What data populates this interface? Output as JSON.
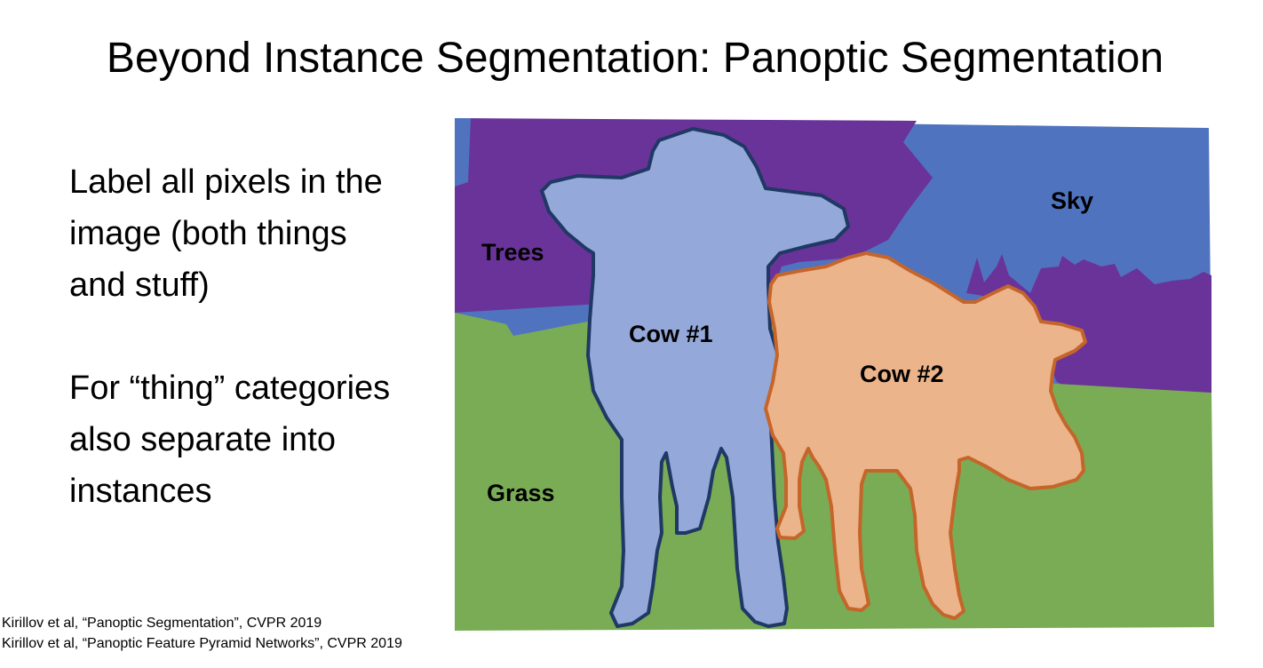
{
  "slide": {
    "title": "Beyond Instance Segmentation: Panoptic Segmentation",
    "paragraphs": [
      "Label all pixels in the image (both things and stuff)",
      "For “thing” categories also separate into instances"
    ],
    "citations": [
      "Kirillov et al, “Panoptic Segmentation”, CVPR 2019",
      "Kirillov et al, “Panoptic Feature Pyramid Networks”, CVPR 2019"
    ]
  },
  "figure": {
    "labels": {
      "trees": "Trees",
      "sky": "Sky",
      "grass": "Grass",
      "cow1": "Cow #1",
      "cow2": "Cow #2"
    },
    "colors": {
      "trees": "#6A3399",
      "sky": "#5073C0",
      "grass": "#79AC55",
      "cow1_fill": "#94A8D9",
      "cow1_outline": "#1F3864",
      "cow2_fill": "#EBB48B",
      "cow2_outline": "#C5652A"
    }
  }
}
